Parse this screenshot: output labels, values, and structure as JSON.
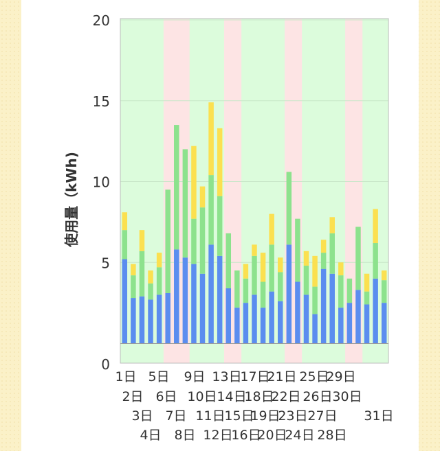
{
  "colors": {
    "page_background": "#fbf1c8",
    "card": "#ffffff",
    "weekday_band": "#dcfcdc",
    "holiday_band": "#fde4e4",
    "series_day": "#5b8def",
    "series_evening": "#8de28d",
    "series_night": "#fbe050",
    "axis_text": "#333333"
  },
  "chart_data": {
    "type": "bar",
    "stacked": true,
    "ylabel": "使用量（kWh)",
    "ylim": [
      0,
      20
    ],
    "yticks": [
      0,
      5,
      10,
      15,
      20
    ],
    "grid": true,
    "categories": [
      "1日",
      "2日",
      "3日",
      "4日",
      "5日",
      "6日",
      "7日",
      "8日",
      "9日",
      "10日",
      "11日",
      "12日",
      "13日",
      "14日",
      "15日",
      "16日",
      "17日",
      "18日",
      "19日",
      "20日",
      "21日",
      "22日",
      "23日",
      "24日",
      "25日",
      "26日",
      "27日",
      "28日",
      "29日",
      "30日",
      "31日"
    ],
    "category_label_rows": 4,
    "holidays": [
      6,
      7,
      8,
      13,
      14,
      20,
      21,
      27,
      28
    ],
    "series": [
      {
        "color": "#5b8def",
        "values": [
          5.2,
          2.8,
          2.9,
          2.7,
          3.0,
          3.1,
          5.8,
          5.3,
          4.9,
          4.3,
          6.1,
          5.4,
          3.4,
          2.2,
          2.5,
          3.0,
          2.2,
          3.2,
          2.6,
          6.1,
          3.8,
          3.0,
          1.8,
          4.6,
          4.3,
          2.2,
          2.5,
          3.3,
          2.4,
          4.0,
          2.5
        ]
      },
      {
        "color": "#8de28d",
        "values": [
          1.8,
          1.4,
          2.8,
          1.0,
          1.7,
          6.4,
          7.7,
          6.7,
          2.8,
          4.1,
          4.3,
          3.7,
          3.4,
          2.3,
          1.5,
          2.4,
          1.6,
          2.9,
          1.8,
          4.5,
          3.9,
          1.8,
          1.7,
          1.0,
          2.5,
          2.0,
          1.5,
          3.9,
          0.8,
          2.2,
          1.4
        ]
      },
      {
        "color": "#fbe050",
        "values": [
          1.1,
          0.7,
          1.3,
          0.8,
          0.9,
          0,
          0,
          0,
          4.5,
          1.3,
          4.5,
          4.2,
          0,
          0,
          0.9,
          0.7,
          1.8,
          1.9,
          0.9,
          0,
          0,
          0.9,
          1.9,
          0.8,
          1.0,
          0.8,
          0,
          0,
          1.1,
          2.1,
          0.6
        ]
      }
    ]
  }
}
